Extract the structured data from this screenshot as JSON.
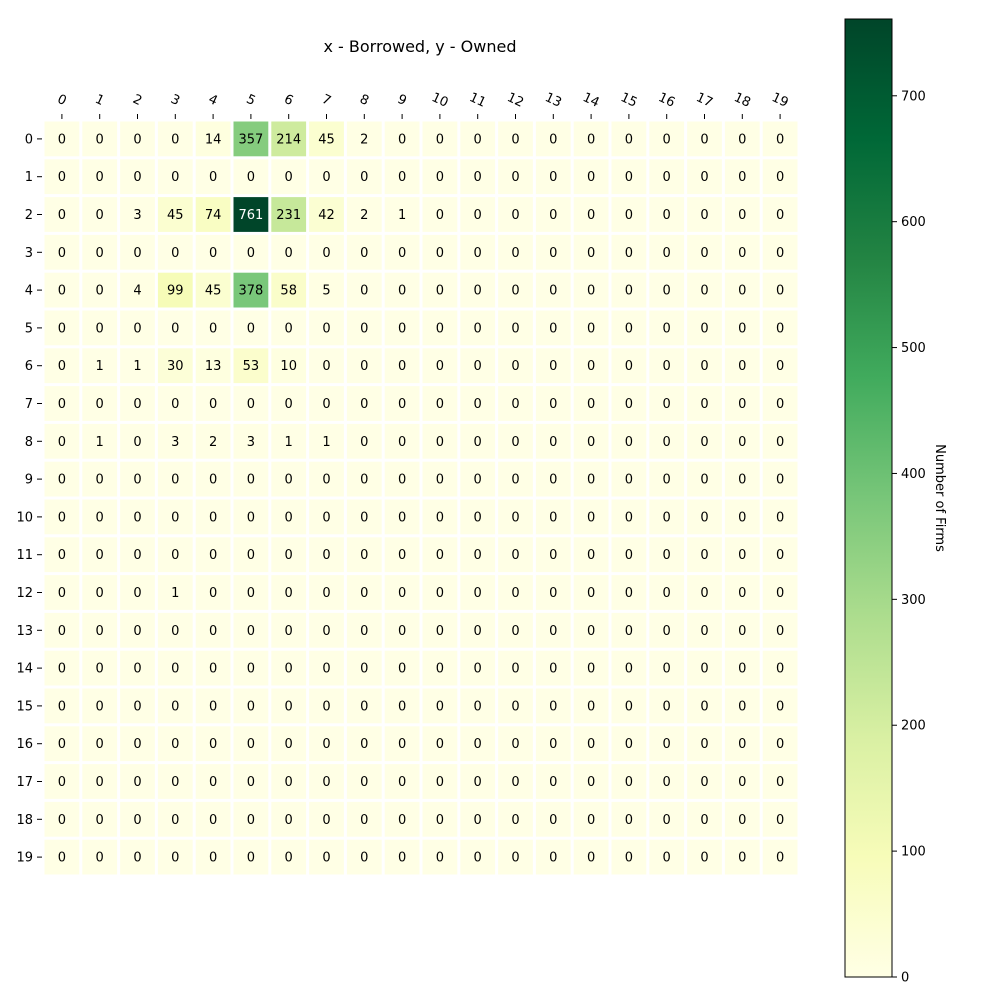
{
  "chart_data": {
    "type": "heatmap",
    "title": "x - Borrowed, y - Owned",
    "x_categories": [
      "0",
      "1",
      "2",
      "3",
      "4",
      "5",
      "6",
      "7",
      "8",
      "9",
      "10",
      "11",
      "12",
      "13",
      "14",
      "15",
      "16",
      "17",
      "18",
      "19"
    ],
    "y_categories": [
      "0",
      "1",
      "2",
      "3",
      "4",
      "5",
      "6",
      "7",
      "8",
      "9",
      "10",
      "11",
      "12",
      "13",
      "14",
      "15",
      "16",
      "17",
      "18",
      "19"
    ],
    "values": [
      [
        0,
        0,
        0,
        0,
        14,
        357,
        214,
        45,
        2,
        0,
        0,
        0,
        0,
        0,
        0,
        0,
        0,
        0,
        0,
        0
      ],
      [
        0,
        0,
        0,
        0,
        0,
        0,
        0,
        0,
        0,
        0,
        0,
        0,
        0,
        0,
        0,
        0,
        0,
        0,
        0,
        0
      ],
      [
        0,
        0,
        3,
        45,
        74,
        761,
        231,
        42,
        2,
        1,
        0,
        0,
        0,
        0,
        0,
        0,
        0,
        0,
        0,
        0
      ],
      [
        0,
        0,
        0,
        0,
        0,
        0,
        0,
        0,
        0,
        0,
        0,
        0,
        0,
        0,
        0,
        0,
        0,
        0,
        0,
        0
      ],
      [
        0,
        0,
        4,
        99,
        45,
        378,
        58,
        5,
        0,
        0,
        0,
        0,
        0,
        0,
        0,
        0,
        0,
        0,
        0,
        0
      ],
      [
        0,
        0,
        0,
        0,
        0,
        0,
        0,
        0,
        0,
        0,
        0,
        0,
        0,
        0,
        0,
        0,
        0,
        0,
        0,
        0
      ],
      [
        0,
        1,
        1,
        30,
        13,
        53,
        10,
        0,
        0,
        0,
        0,
        0,
        0,
        0,
        0,
        0,
        0,
        0,
        0,
        0
      ],
      [
        0,
        0,
        0,
        0,
        0,
        0,
        0,
        0,
        0,
        0,
        0,
        0,
        0,
        0,
        0,
        0,
        0,
        0,
        0,
        0
      ],
      [
        0,
        1,
        0,
        3,
        2,
        3,
        1,
        1,
        0,
        0,
        0,
        0,
        0,
        0,
        0,
        0,
        0,
        0,
        0,
        0
      ],
      [
        0,
        0,
        0,
        0,
        0,
        0,
        0,
        0,
        0,
        0,
        0,
        0,
        0,
        0,
        0,
        0,
        0,
        0,
        0,
        0
      ],
      [
        0,
        0,
        0,
        0,
        0,
        0,
        0,
        0,
        0,
        0,
        0,
        0,
        0,
        0,
        0,
        0,
        0,
        0,
        0,
        0
      ],
      [
        0,
        0,
        0,
        0,
        0,
        0,
        0,
        0,
        0,
        0,
        0,
        0,
        0,
        0,
        0,
        0,
        0,
        0,
        0,
        0
      ],
      [
        0,
        0,
        0,
        1,
        0,
        0,
        0,
        0,
        0,
        0,
        0,
        0,
        0,
        0,
        0,
        0,
        0,
        0,
        0,
        0
      ],
      [
        0,
        0,
        0,
        0,
        0,
        0,
        0,
        0,
        0,
        0,
        0,
        0,
        0,
        0,
        0,
        0,
        0,
        0,
        0,
        0
      ],
      [
        0,
        0,
        0,
        0,
        0,
        0,
        0,
        0,
        0,
        0,
        0,
        0,
        0,
        0,
        0,
        0,
        0,
        0,
        0,
        0
      ],
      [
        0,
        0,
        0,
        0,
        0,
        0,
        0,
        0,
        0,
        0,
        0,
        0,
        0,
        0,
        0,
        0,
        0,
        0,
        0,
        0
      ],
      [
        0,
        0,
        0,
        0,
        0,
        0,
        0,
        0,
        0,
        0,
        0,
        0,
        0,
        0,
        0,
        0,
        0,
        0,
        0,
        0
      ],
      [
        0,
        0,
        0,
        0,
        0,
        0,
        0,
        0,
        0,
        0,
        0,
        0,
        0,
        0,
        0,
        0,
        0,
        0,
        0,
        0
      ],
      [
        0,
        0,
        0,
        0,
        0,
        0,
        0,
        0,
        0,
        0,
        0,
        0,
        0,
        0,
        0,
        0,
        0,
        0,
        0,
        0
      ],
      [
        0,
        0,
        0,
        0,
        0,
        0,
        0,
        0,
        0,
        0,
        0,
        0,
        0,
        0,
        0,
        0,
        0,
        0,
        0,
        0
      ]
    ],
    "colorbar": {
      "label": "Number of Firms",
      "range": [
        0,
        761
      ],
      "ticks": [
        0,
        100,
        200,
        300,
        400,
        500,
        600,
        700
      ],
      "colormap": "YlGn"
    },
    "x_axis_position": "top",
    "grid": false
  }
}
